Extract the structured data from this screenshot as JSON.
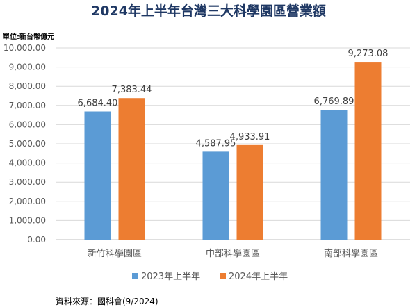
{
  "title": "2024年上半年台灣三大科學園區營業額",
  "unit_label": "單位:新台幣億元",
  "source": "資料來源：國科會(9/2024)",
  "colors": {
    "series_2023": "#5b9bd5",
    "series_2024": "#ed7d31",
    "grid": "#d9d9d9",
    "axis": "#bfbfbf"
  },
  "chart_data": {
    "type": "bar",
    "title": "2024年上半年台灣三大科學園區營業額",
    "xlabel": "",
    "ylabel": "",
    "ylim": [
      0,
      10000
    ],
    "y_ticks": [
      "0.00",
      "1,000.00",
      "2,000.00",
      "3,000.00",
      "4,000.00",
      "5,000.00",
      "6,000.00",
      "7,000.00",
      "8,000.00",
      "9,000.00",
      "10,000.00"
    ],
    "y_tick_values": [
      0,
      1000,
      2000,
      3000,
      4000,
      5000,
      6000,
      7000,
      8000,
      9000,
      10000
    ],
    "categories": [
      "新竹科學園區",
      "中部科學園區",
      "南部科學園區"
    ],
    "series": [
      {
        "name": "2023年上半年",
        "values": [
          6684.4,
          4587.95,
          6769.89
        ],
        "labels": [
          "6,684.40",
          "4,587.95",
          "6,769.89"
        ],
        "color": "#5b9bd5"
      },
      {
        "name": "2024年上半年",
        "values": [
          7383.44,
          4933.91,
          9273.08
        ],
        "labels": [
          "7,383.44",
          "4,933.91",
          "9,273.08"
        ],
        "color": "#ed7d31"
      }
    ],
    "grid": true,
    "legend_position": "bottom"
  }
}
